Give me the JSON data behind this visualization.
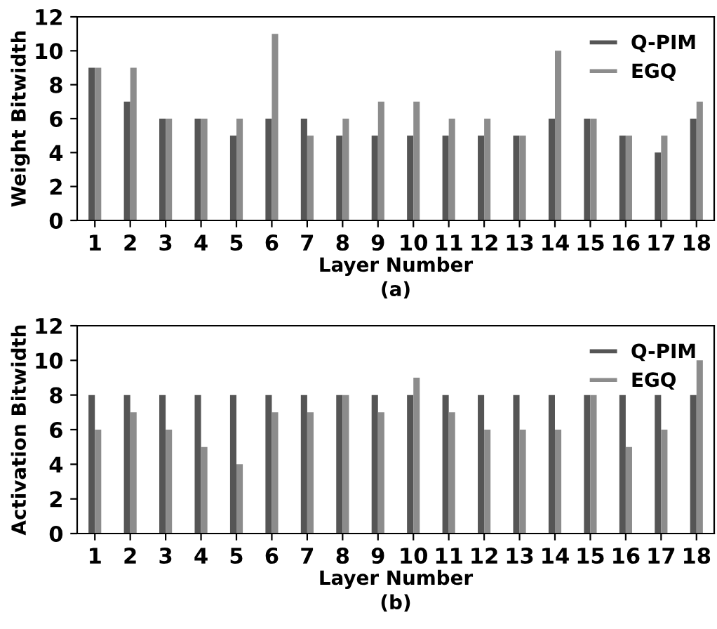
{
  "chart_data": [
    {
      "type": "bar",
      "xlabel": "Layer Number",
      "ylabel": "Weight Bitwidth",
      "annotations": [
        "(a)"
      ],
      "categories": [
        "1",
        "2",
        "3",
        "4",
        "5",
        "6",
        "7",
        "8",
        "9",
        "10",
        "11",
        "12",
        "13",
        "14",
        "15",
        "16",
        "17",
        "18"
      ],
      "series": [
        {
          "name": "Q-PIM",
          "color": "#555555",
          "values": [
            9,
            7,
            6,
            6,
            5,
            6,
            6,
            5,
            5,
            5,
            5,
            5,
            5,
            6,
            6,
            5,
            4,
            6
          ]
        },
        {
          "name": "EGQ",
          "color": "#8c8c8c",
          "values": [
            9,
            9,
            6,
            6,
            6,
            11,
            5,
            6,
            7,
            7,
            6,
            6,
            5,
            10,
            6,
            5,
            5,
            7
          ]
        }
      ],
      "ylim": [
        0,
        12
      ],
      "yticks": [
        0,
        2,
        4,
        6,
        8,
        10,
        12
      ],
      "legend": "top right",
      "grid": false
    },
    {
      "type": "bar",
      "xlabel": "Layer Number",
      "ylabel": "Activation Bitwidth",
      "annotations": [
        "(b)"
      ],
      "categories": [
        "1",
        "2",
        "3",
        "4",
        "5",
        "6",
        "7",
        "8",
        "9",
        "10",
        "11",
        "12",
        "13",
        "14",
        "15",
        "16",
        "17",
        "18"
      ],
      "series": [
        {
          "name": "Q-PIM",
          "color": "#555555",
          "values": [
            8,
            8,
            8,
            8,
            8,
            8,
            8,
            8,
            8,
            8,
            8,
            8,
            8,
            8,
            8,
            8,
            8,
            8
          ]
        },
        {
          "name": "EGQ",
          "color": "#8c8c8c",
          "values": [
            6,
            7,
            6,
            5,
            4,
            7,
            7,
            8,
            7,
            9,
            7,
            6,
            6,
            6,
            8,
            5,
            6,
            10
          ]
        }
      ],
      "ylim": [
        0,
        12
      ],
      "yticks": [
        0,
        2,
        4,
        6,
        8,
        10,
        12
      ],
      "legend": "top right",
      "grid": false
    }
  ]
}
